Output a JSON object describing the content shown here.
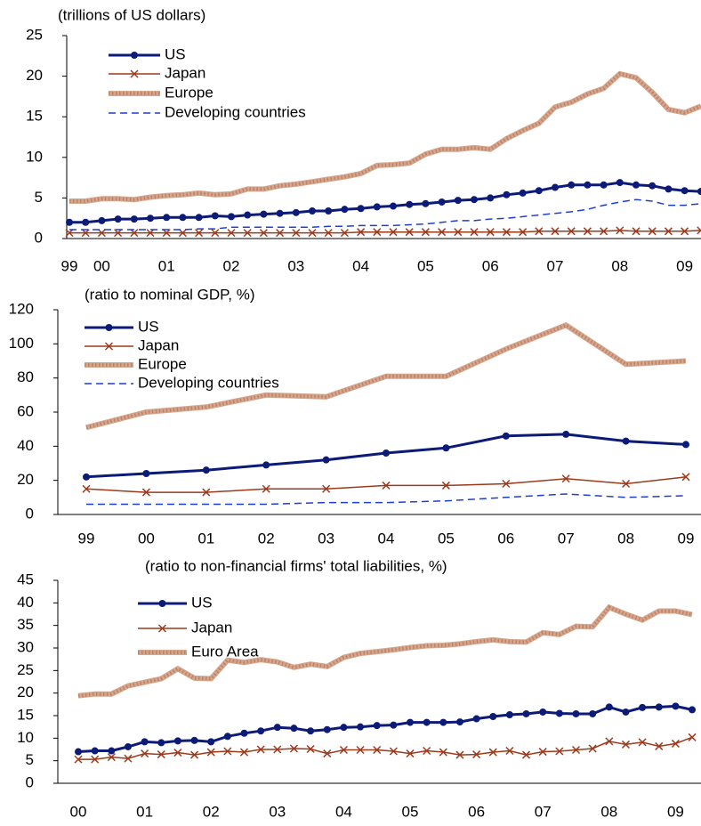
{
  "chart_data": [
    {
      "type": "line",
      "title": "(trillions of US dollars)",
      "categories": [
        "99",
        null,
        "00",
        null,
        null,
        null,
        "01",
        null,
        null,
        null,
        "02",
        null,
        null,
        null,
        "03",
        null,
        null,
        null,
        "04",
        null,
        null,
        null,
        "05",
        null,
        null,
        null,
        "06",
        null,
        null,
        null,
        "07",
        null,
        null,
        null,
        "08",
        null,
        null,
        null,
        "09",
        null
      ],
      "ylim": [
        0,
        25
      ],
      "yticks": [
        0,
        5,
        10,
        15,
        20,
        25
      ],
      "grid": false,
      "series": [
        {
          "name": "US",
          "color": "#0c1a78",
          "marker": "circle",
          "line": "solid",
          "values": [
            2.0,
            2.0,
            2.2,
            2.4,
            2.4,
            2.5,
            2.6,
            2.6,
            2.6,
            2.8,
            2.7,
            2.9,
            3.0,
            3.1,
            3.2,
            3.4,
            3.4,
            3.6,
            3.7,
            3.9,
            4.0,
            4.2,
            4.3,
            4.5,
            4.7,
            4.8,
            5.0,
            5.4,
            5.6,
            5.9,
            6.3,
            6.6,
            6.6,
            6.6,
            6.9,
            6.6,
            6.5,
            6.1,
            5.9,
            5.8
          ]
        },
        {
          "name": "Japan",
          "color": "#9c3a1c",
          "marker": "x",
          "line": "solid",
          "values": [
            0.7,
            0.7,
            0.7,
            0.7,
            0.7,
            0.7,
            0.7,
            0.7,
            0.7,
            0.7,
            0.7,
            0.7,
            0.7,
            0.7,
            0.7,
            0.7,
            0.7,
            0.7,
            0.8,
            0.8,
            0.8,
            0.8,
            0.8,
            0.8,
            0.8,
            0.8,
            0.8,
            0.8,
            0.8,
            0.9,
            0.9,
            0.9,
            0.9,
            0.9,
            1.0,
            0.9,
            0.9,
            0.9,
            0.9,
            1.0
          ]
        },
        {
          "name": "Europe",
          "color": "#d6a68c",
          "marker": "none",
          "line": "hatched",
          "values": [
            4.6,
            4.6,
            4.9,
            4.9,
            4.8,
            5.1,
            5.3,
            5.4,
            5.6,
            5.4,
            5.5,
            6.1,
            6.1,
            6.5,
            6.7,
            7.0,
            7.3,
            7.6,
            8.0,
            9.0,
            9.1,
            9.3,
            10.4,
            11.0,
            11.0,
            11.2,
            11.0,
            12.3,
            13.3,
            14.2,
            16.2,
            16.8,
            17.8,
            18.5,
            20.3,
            19.8,
            18.0,
            15.9,
            15.5,
            16.3
          ]
        },
        {
          "name": "Developing countries",
          "color": "#1f3fd0",
          "marker": "none",
          "line": "dashed",
          "values": [
            1.1,
            1.1,
            1.1,
            1.1,
            1.1,
            1.1,
            1.1,
            1.1,
            1.2,
            1.2,
            1.4,
            1.4,
            1.4,
            1.4,
            1.4,
            1.4,
            1.5,
            1.5,
            1.6,
            1.6,
            1.6,
            1.7,
            1.8,
            2.0,
            2.2,
            2.2,
            2.4,
            2.5,
            2.7,
            2.9,
            3.1,
            3.3,
            3.6,
            4.1,
            4.5,
            4.8,
            4.6,
            4.1,
            4.1,
            4.3
          ]
        }
      ]
    },
    {
      "type": "line",
      "title": "(ratio to nominal GDP, %)",
      "categories": [
        "99",
        "00",
        "01",
        "02",
        "03",
        "04",
        "05",
        "06",
        "07",
        "08",
        "09"
      ],
      "ylim": [
        0,
        120
      ],
      "yticks": [
        0,
        20,
        40,
        60,
        80,
        100,
        120
      ],
      "grid": false,
      "series": [
        {
          "name": "US",
          "color": "#0c1a78",
          "marker": "circle",
          "line": "solid",
          "values": [
            22,
            24,
            26,
            29,
            32,
            36,
            39,
            46,
            47,
            43,
            41
          ]
        },
        {
          "name": "Japan",
          "color": "#9c3a1c",
          "marker": "x",
          "line": "solid",
          "values": [
            15,
            13,
            13,
            15,
            15,
            17,
            17,
            18,
            21,
            18,
            22
          ]
        },
        {
          "name": "Europe",
          "color": "#d6a68c",
          "marker": "none",
          "line": "hatched",
          "values": [
            51,
            60,
            63,
            70,
            69,
            81,
            81,
            97,
            111,
            88,
            90
          ]
        },
        {
          "name": "Developing countries",
          "color": "#1f3fd0",
          "marker": "none",
          "line": "dashed",
          "values": [
            6,
            6,
            6,
            6,
            7,
            7,
            8,
            10,
            12,
            10,
            11
          ]
        }
      ]
    },
    {
      "type": "line",
      "title": "(ratio to non-financial firms' total liabilities, %)",
      "categories": [
        "00",
        null,
        null,
        null,
        "01",
        null,
        null,
        null,
        "02",
        null,
        null,
        null,
        "03",
        null,
        null,
        null,
        "04",
        null,
        null,
        null,
        "05",
        null,
        null,
        null,
        "06",
        null,
        null,
        null,
        "07",
        null,
        null,
        null,
        "08",
        null,
        null,
        null,
        "09",
        null
      ],
      "ylim": [
        0,
        45
      ],
      "yticks": [
        0,
        5,
        10,
        15,
        20,
        25,
        30,
        35,
        40,
        45
      ],
      "grid": false,
      "series": [
        {
          "name": "US",
          "color": "#0c1a78",
          "marker": "circle",
          "line": "solid",
          "values": [
            7,
            7.2,
            7.2,
            8.1,
            9.2,
            9,
            9.4,
            9.5,
            9.2,
            10.4,
            11.1,
            11.6,
            12.4,
            12.2,
            11.6,
            11.9,
            12.4,
            12.5,
            12.8,
            12.9,
            13.5,
            13.5,
            13.5,
            13.6,
            14.3,
            14.8,
            15.2,
            15.4,
            15.8,
            15.5,
            15.4,
            15.4,
            16.9,
            15.8,
            16.8,
            16.9,
            17.1,
            16.3
          ]
        },
        {
          "name": "Japan",
          "color": "#9c3a1c",
          "marker": "x",
          "line": "solid",
          "values": [
            5.3,
            5.3,
            5.8,
            5.5,
            6.6,
            6.4,
            6.8,
            6.3,
            6.9,
            7.1,
            6.9,
            7.5,
            7.5,
            7.7,
            7.6,
            6.6,
            7.4,
            7.4,
            7.4,
            7.1,
            6.6,
            7.2,
            6.9,
            6.3,
            6.4,
            6.9,
            7.2,
            6.3,
            7.0,
            7.1,
            7.4,
            7.7,
            9.3,
            8.6,
            9.1,
            8.2,
            8.8,
            10.2
          ]
        },
        {
          "name": "Euro Area",
          "color": "#d6a68c",
          "marker": "none",
          "line": "hatched",
          "values": [
            19.4,
            19.8,
            19.8,
            21.6,
            22.4,
            23.2,
            25.4,
            23.3,
            23.2,
            27.3,
            26.8,
            27.4,
            26.9,
            25.7,
            26.4,
            25.9,
            27.9,
            28.8,
            29.2,
            29.6,
            30.1,
            30.5,
            30.6,
            30.9,
            31.4,
            31.8,
            31.4,
            31.3,
            33.4,
            33.0,
            34.8,
            34.7,
            39.0,
            37.5,
            36.2,
            38.2,
            38.2,
            37.4
          ]
        }
      ]
    }
  ]
}
